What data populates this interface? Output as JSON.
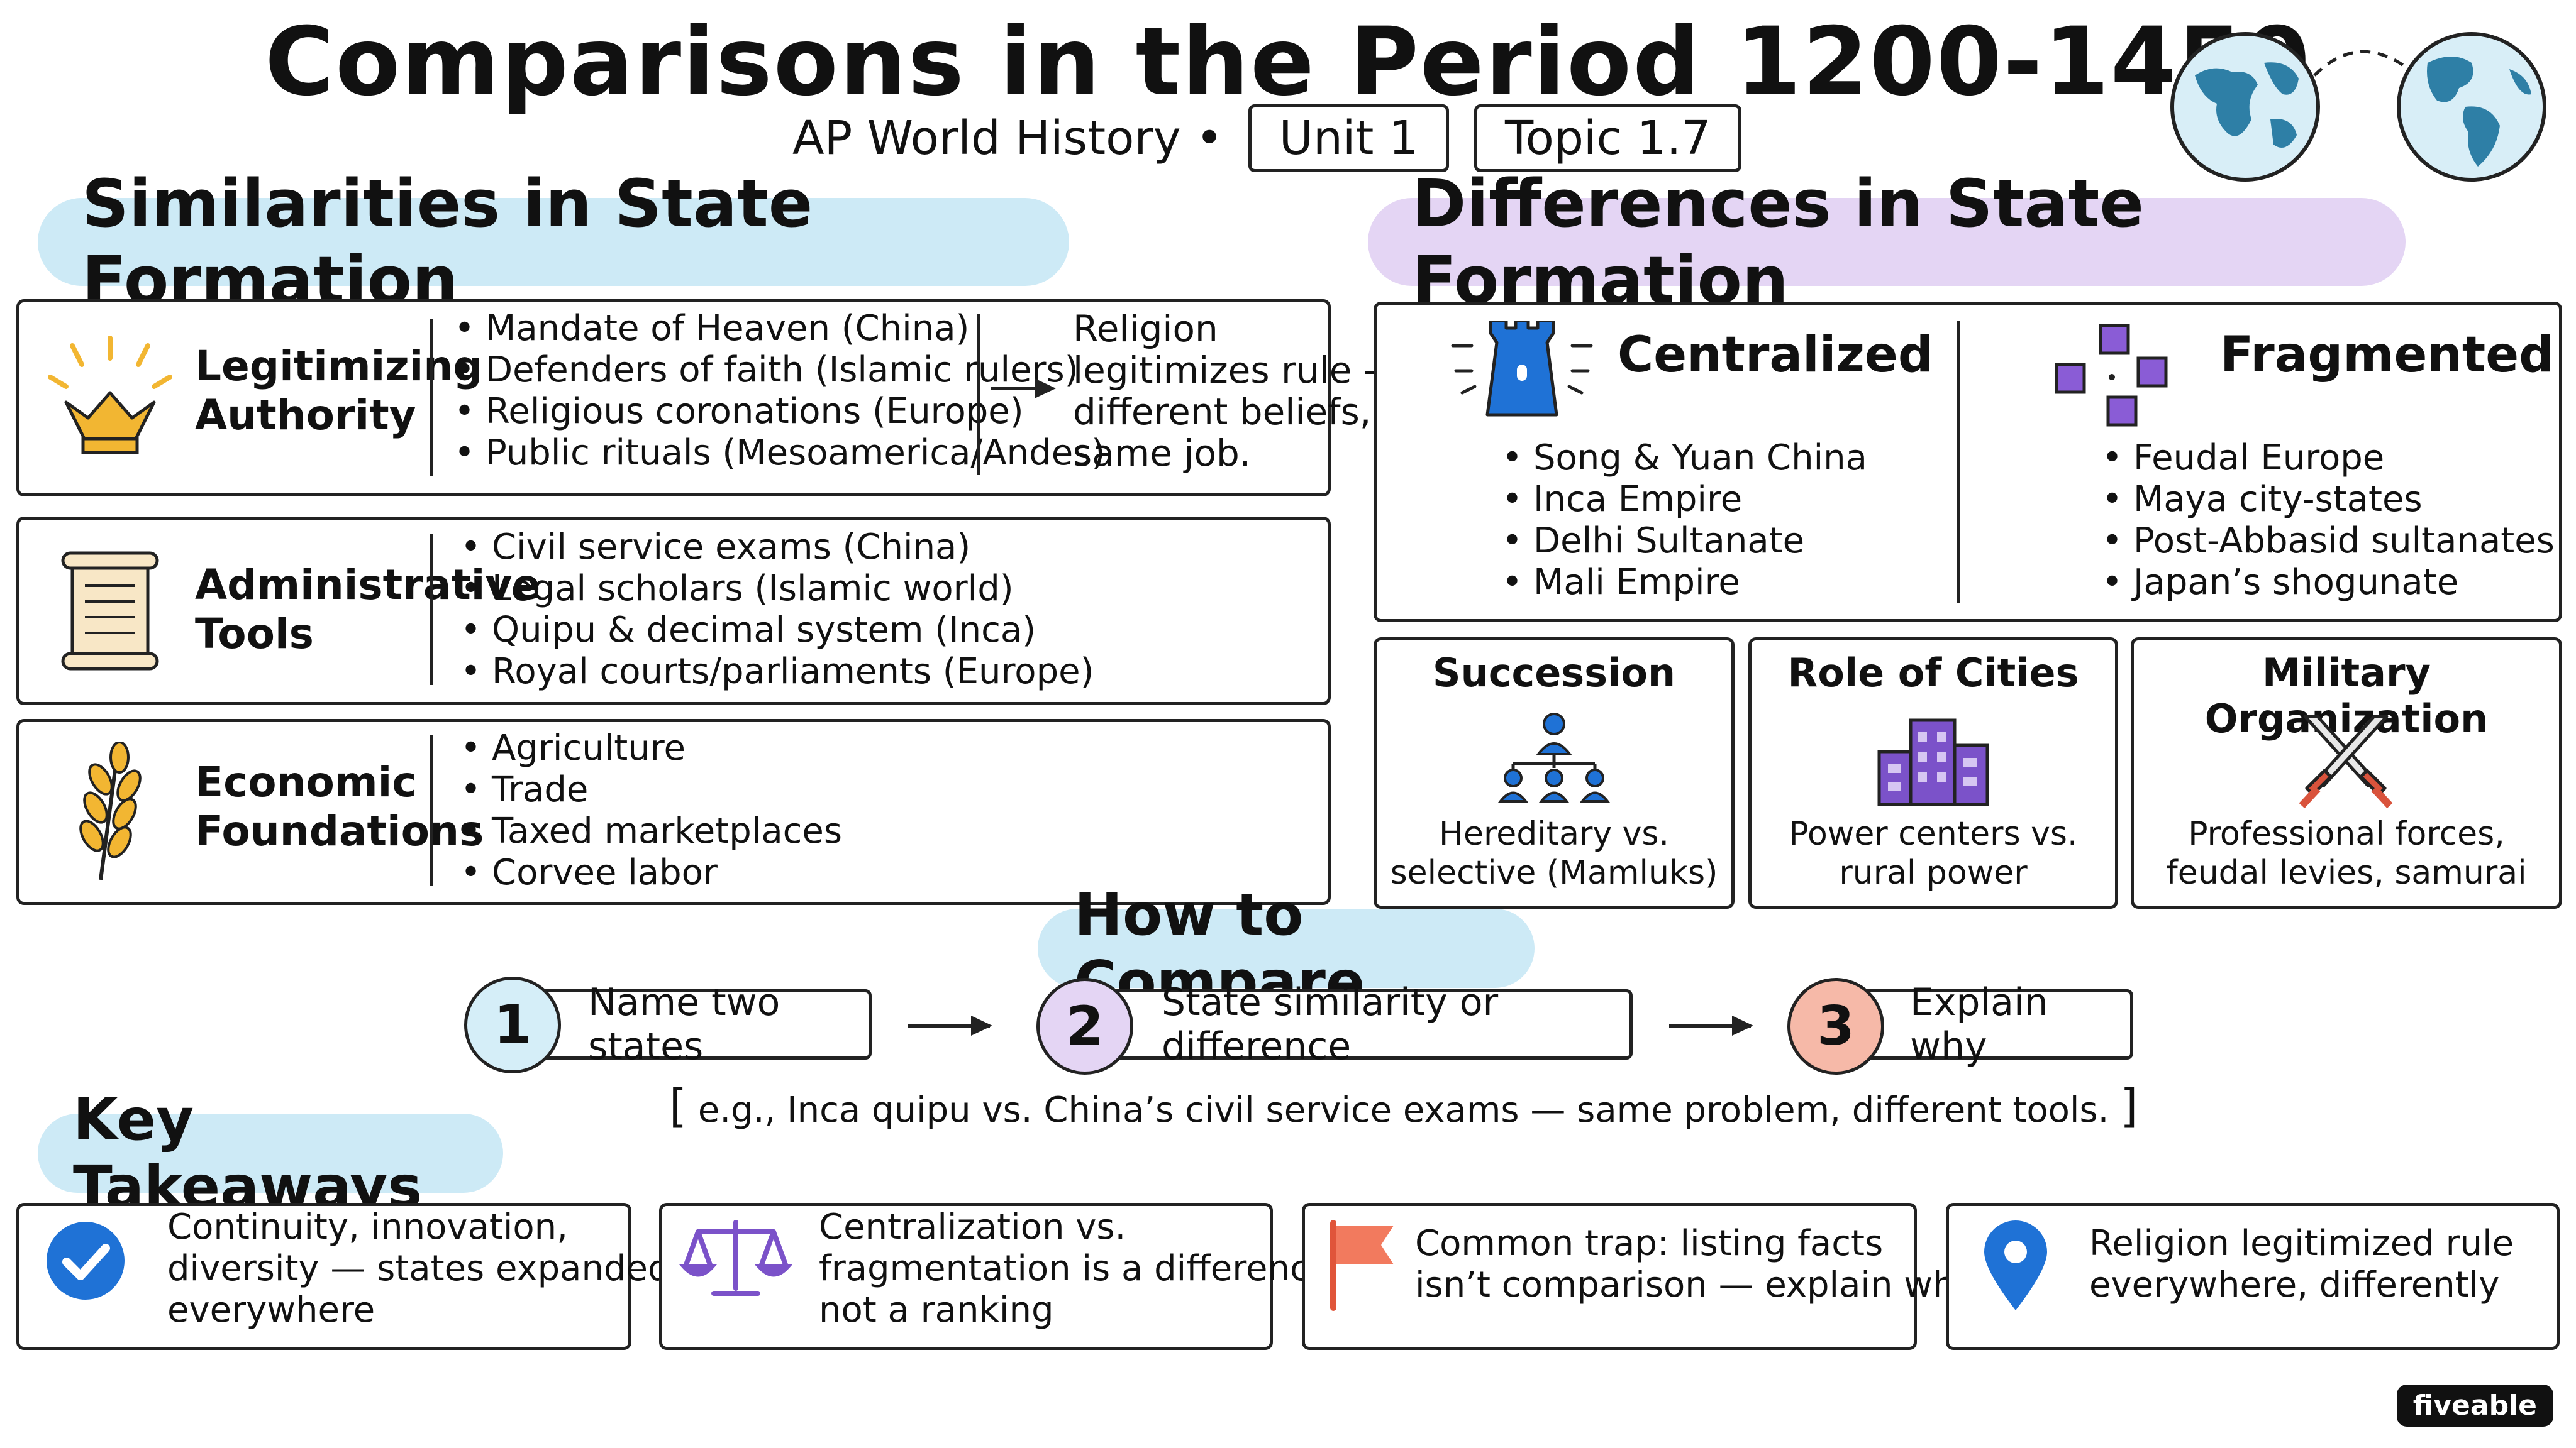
{
  "header": {
    "title": "Comparisons in the Period 1200-1450",
    "subtitle": "AP World History •",
    "unit": "Unit 1",
    "topic": "Topic 1.7"
  },
  "similarities": {
    "heading": "Similarities in State Formation",
    "rows": [
      {
        "label_1": "Legitimizing",
        "label_2": "Authority",
        "icon": "crown-icon",
        "items": [
          "Mandate of Heaven (China)",
          "Defenders of faith (Islamic rulers)",
          "Religious coronations (Europe)",
          "Public rituals (Mesoamerica/Andes)"
        ],
        "note": [
          "Religion",
          "legitimizes rule —",
          "different beliefs,",
          "same job."
        ]
      },
      {
        "label_1": "Administrative",
        "label_2": "Tools",
        "icon": "scroll-icon",
        "items": [
          "Civil service exams (China)",
          "Legal scholars (Islamic world)",
          "Quipu & decimal system (Inca)",
          "Royal courts/parliaments (Europe)"
        ]
      },
      {
        "label_1": "Economic",
        "label_2": "Foundations",
        "icon": "wheat-icon",
        "items": [
          "Agriculture",
          "Trade",
          "Taxed marketplaces",
          "Corvee labor"
        ]
      }
    ]
  },
  "differences": {
    "heading": "Differences in State Formation",
    "centralized": {
      "title": "Centralized",
      "icon": "tower-icon",
      "items": [
        "Song & Yuan China",
        "Inca Empire",
        "Delhi Sultanate",
        "Mali Empire"
      ]
    },
    "fragmented": {
      "title": "Fragmented",
      "icon": "scattered-squares-icon",
      "items": [
        "Feudal Europe",
        "Maya city-states",
        "Post-Abbasid sultanates",
        "Japan’s shogunate"
      ]
    },
    "cards": [
      {
        "title": "Succession",
        "icon": "hierarchy-icon",
        "text_1": "Hereditary vs.",
        "text_2": "selective (Mamluks)"
      },
      {
        "title": "Role of Cities",
        "icon": "buildings-icon",
        "text_1": "Power centers vs.",
        "text_2": "rural power"
      },
      {
        "title": "Military Organization",
        "icon": "crossed-swords-icon",
        "text_1": "Professional forces,",
        "text_2": "feudal levies, samurai"
      }
    ]
  },
  "compare": {
    "heading": "How to Compare",
    "steps": [
      {
        "num": "1",
        "text": "Name two states"
      },
      {
        "num": "2",
        "text": "State similarity or difference"
      },
      {
        "num": "3",
        "text": "Explain why"
      }
    ],
    "example_open": "[",
    "example": "e.g., Inca quipu vs. China’s civil service exams — same problem, different tools.",
    "example_close": "]"
  },
  "takeaways": {
    "heading": "Key Takeaways",
    "items": [
      {
        "icon": "checkmark-icon",
        "lines": [
          "Continuity, innovation,",
          "diversity — states expanded",
          "everywhere"
        ]
      },
      {
        "icon": "balance-scale-icon",
        "lines": [
          "Centralization vs.",
          "fragmentation is a difference,",
          "not a ranking"
        ]
      },
      {
        "icon": "flag-icon",
        "lines": [
          "Common trap: listing facts",
          "isn’t comparison — explain why"
        ]
      },
      {
        "icon": "location-pin-icon",
        "lines": [
          "Religion legitimized rule",
          "everywhere, differently"
        ]
      }
    ]
  },
  "brand": "fiveable",
  "colors": {
    "blue_highlight": "#cdeaf6",
    "purple_highlight": "#e4d5f4",
    "gold": "#f2b632",
    "blue_icon": "#1f72d6",
    "purple_icon": "#7b52c9",
    "step1": "#d5eef8",
    "step2": "#e4d5f4",
    "step3": "#f6b9a8"
  }
}
